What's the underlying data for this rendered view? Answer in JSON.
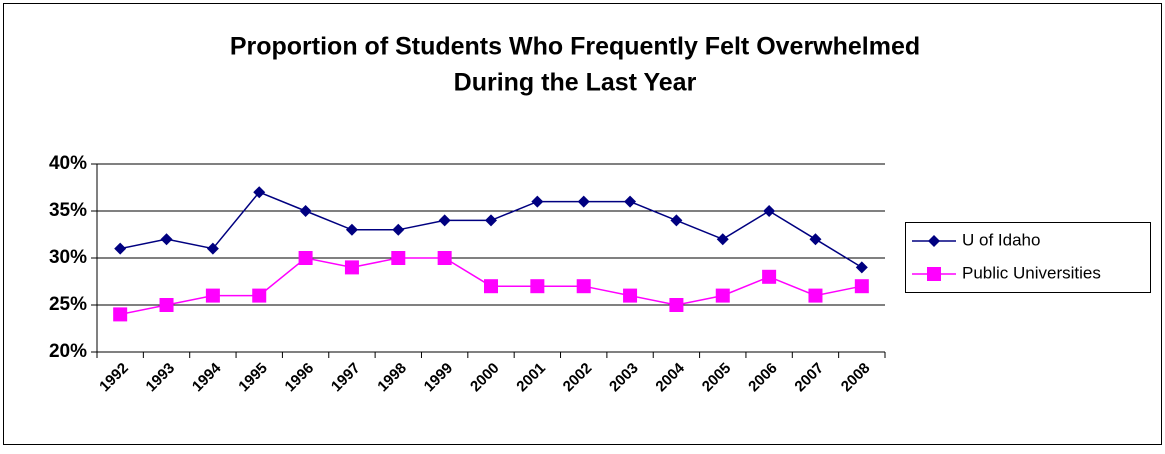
{
  "chart_data": {
    "type": "line",
    "title": [
      "Proportion of Students Who Frequently Felt Overwhelmed",
      "During the Last Year"
    ],
    "categories": [
      "1992",
      "1993",
      "1994",
      "1995",
      "1996",
      "1997",
      "1998",
      "1999",
      "2000",
      "2001",
      "2002",
      "2003",
      "2004",
      "2005",
      "2006",
      "2007",
      "2008"
    ],
    "series": [
      {
        "name": "U of Idaho",
        "color": "#000080",
        "marker": "diamond",
        "values": [
          31,
          32,
          31,
          37,
          35,
          33,
          33,
          34,
          34,
          36,
          36,
          36,
          34,
          32,
          35,
          32,
          29
        ]
      },
      {
        "name": "Public Universities",
        "color": "#ff00ff",
        "marker": "square",
        "values": [
          24,
          25,
          26,
          26,
          30,
          29,
          30,
          30,
          27,
          27,
          27,
          26,
          25,
          26,
          28,
          26,
          27
        ]
      }
    ],
    "ylim": [
      20,
      40
    ],
    "yticks": [
      {
        "value": 20,
        "label": "20%"
      },
      {
        "value": 25,
        "label": "25%"
      },
      {
        "value": 30,
        "label": "30%"
      },
      {
        "value": 35,
        "label": "35%"
      },
      {
        "value": 40,
        "label": "40%"
      }
    ],
    "grid": true,
    "legend": "right"
  }
}
